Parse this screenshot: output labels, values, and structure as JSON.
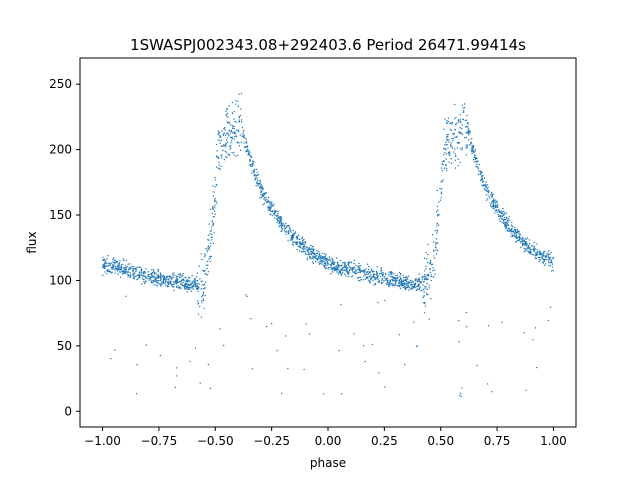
{
  "chart_data": {
    "type": "scatter",
    "title": "1SWASPJ002343.08+292403.6 Period 26471.99414s",
    "xlabel": "phase",
    "ylabel": "flux",
    "xlim": [
      -1.1,
      1.1
    ],
    "ylim": [
      -12,
      270
    ],
    "xticks": [
      -1.0,
      -0.75,
      -0.5,
      -0.25,
      0.0,
      0.25,
      0.5,
      0.75,
      1.0
    ],
    "xtick_labels": [
      "−1.00",
      "−0.75",
      "−0.50",
      "−0.25",
      "0.00",
      "0.25",
      "0.50",
      "0.75",
      "1.00"
    ],
    "yticks": [
      0,
      50,
      100,
      150,
      200,
      250
    ],
    "ytick_labels": [
      "0",
      "50",
      "100",
      "150",
      "200",
      "250"
    ],
    "grid": false,
    "point_color": "#1f77b4",
    "series": [
      {
        "phase": [
          0.0,
          0.05,
          0.1,
          0.15,
          0.2,
          0.25,
          0.3,
          0.35,
          0.4,
          0.43,
          0.45,
          0.48,
          0.5,
          0.52,
          0.55,
          0.58,
          0.6,
          0.62,
          0.65,
          0.7,
          0.75,
          0.8,
          0.85,
          0.9,
          0.95,
          1.0
        ],
        "flux": [
          112,
          110,
          108,
          106,
          104,
          102,
          100,
          98,
          97,
          96,
          100,
          130,
          170,
          200,
          210,
          215,
          218,
          215,
          195,
          170,
          155,
          142,
          132,
          124,
          118,
          114
        ]
      }
    ]
  }
}
